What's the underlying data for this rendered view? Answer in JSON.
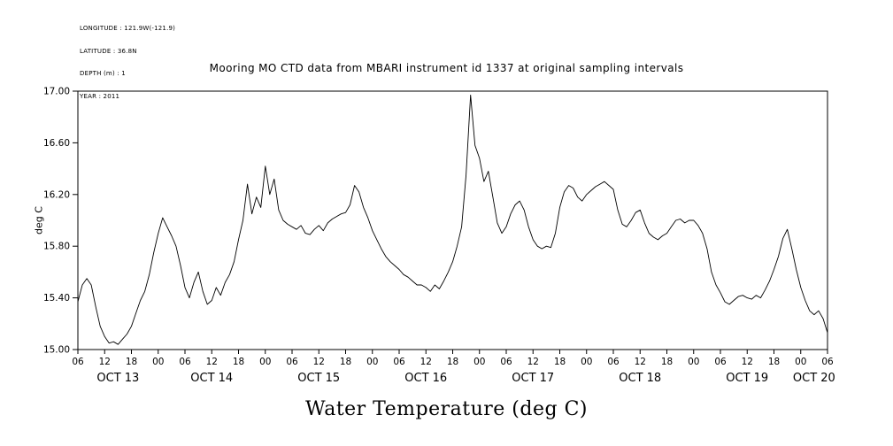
{
  "header": {
    "metadata_lines": [
      "LONGITUDE : 121.9W(-121.9)",
      "LATITUDE : 36.8N",
      "DEPTH (m) : 1",
      "YEAR : 2011"
    ],
    "title": "Mooring MO CTD data from MBARI instrument id 1337 at original sampling intervals"
  },
  "chart_data": {
    "type": "line",
    "title": "Mooring MO CTD data from MBARI instrument id 1337 at original sampling intervals",
    "xlabel": "Water Temperature (deg C)",
    "ylabel": "deg C",
    "ylim": [
      15.0,
      17.0
    ],
    "y_tick_values": [
      15.0,
      15.4,
      15.8,
      16.2,
      16.6,
      17.0
    ],
    "y_tick_labels": [
      "15.00",
      "15.40",
      "15.80",
      "16.20",
      "16.60",
      "17.00"
    ],
    "x_range_hours": [
      0,
      168
    ],
    "x_tick_step_hours": 6,
    "x_tick_labels": [
      "06",
      "12",
      "18",
      "00",
      "06",
      "12",
      "18",
      "00",
      "06",
      "12",
      "18",
      "00",
      "06",
      "12",
      "18",
      "00",
      "06",
      "12",
      "18",
      "00",
      "06",
      "12",
      "18",
      "00",
      "06",
      "12",
      "18",
      "00",
      "06"
    ],
    "date_labels": [
      {
        "label": "OCT 13",
        "center_hour": 9
      },
      {
        "label": "OCT 14",
        "center_hour": 30
      },
      {
        "label": "OCT 15",
        "center_hour": 54
      },
      {
        "label": "OCT 16",
        "center_hour": 78
      },
      {
        "label": "OCT 17",
        "center_hour": 102
      },
      {
        "label": "OCT 18",
        "center_hour": 126
      },
      {
        "label": "OCT 19",
        "center_hour": 150
      },
      {
        "label": "OCT 20",
        "center_hour": 165
      }
    ],
    "grid": false,
    "legend": "none",
    "line_color": "#000000",
    "background": "#ffffff",
    "series": [
      {
        "name": "Water Temperature",
        "units": "deg C",
        "x_start_hour": 0,
        "x_step_hours": 1,
        "values": [
          15.37,
          15.5,
          15.55,
          15.5,
          15.33,
          15.18,
          15.1,
          15.05,
          15.06,
          15.04,
          15.08,
          15.12,
          15.18,
          15.28,
          15.38,
          15.45,
          15.58,
          15.75,
          15.9,
          16.02,
          15.95,
          15.88,
          15.8,
          15.65,
          15.48,
          15.4,
          15.52,
          15.6,
          15.45,
          15.35,
          15.38,
          15.48,
          15.42,
          15.52,
          15.58,
          15.68,
          15.85,
          16.0,
          16.28,
          16.05,
          16.18,
          16.1,
          16.42,
          16.2,
          16.32,
          16.08,
          16.0,
          15.97,
          15.95,
          15.93,
          15.96,
          15.9,
          15.89,
          15.93,
          15.96,
          15.92,
          15.98,
          16.01,
          16.03,
          16.05,
          16.06,
          16.12,
          16.27,
          16.22,
          16.1,
          16.02,
          15.92,
          15.85,
          15.78,
          15.72,
          15.68,
          15.65,
          15.62,
          15.58,
          15.56,
          15.53,
          15.5,
          15.5,
          15.48,
          15.45,
          15.5,
          15.47,
          15.53,
          15.6,
          15.68,
          15.8,
          15.95,
          16.35,
          16.97,
          16.58,
          16.48,
          16.3,
          16.38,
          16.18,
          15.98,
          15.9,
          15.95,
          16.05,
          16.12,
          16.15,
          16.08,
          15.95,
          15.85,
          15.8,
          15.78,
          15.8,
          15.79,
          15.9,
          16.1,
          16.22,
          16.27,
          16.25,
          16.18,
          16.15,
          16.2,
          16.23,
          16.26,
          16.28,
          16.3,
          16.27,
          16.24,
          16.08,
          15.97,
          15.95,
          16.0,
          16.06,
          16.08,
          15.98,
          15.9,
          15.87,
          15.85,
          15.88,
          15.9,
          15.95,
          16.0,
          16.01,
          15.98,
          16.0,
          16.0,
          15.96,
          15.9,
          15.78,
          15.6,
          15.5,
          15.44,
          15.37,
          15.35,
          15.38,
          15.41,
          15.42,
          15.4,
          15.39,
          15.42,
          15.4,
          15.46,
          15.53,
          15.62,
          15.72,
          15.86,
          15.93,
          15.78,
          15.62,
          15.48,
          15.38,
          15.3,
          15.27,
          15.3,
          15.24,
          15.13
        ]
      }
    ]
  }
}
